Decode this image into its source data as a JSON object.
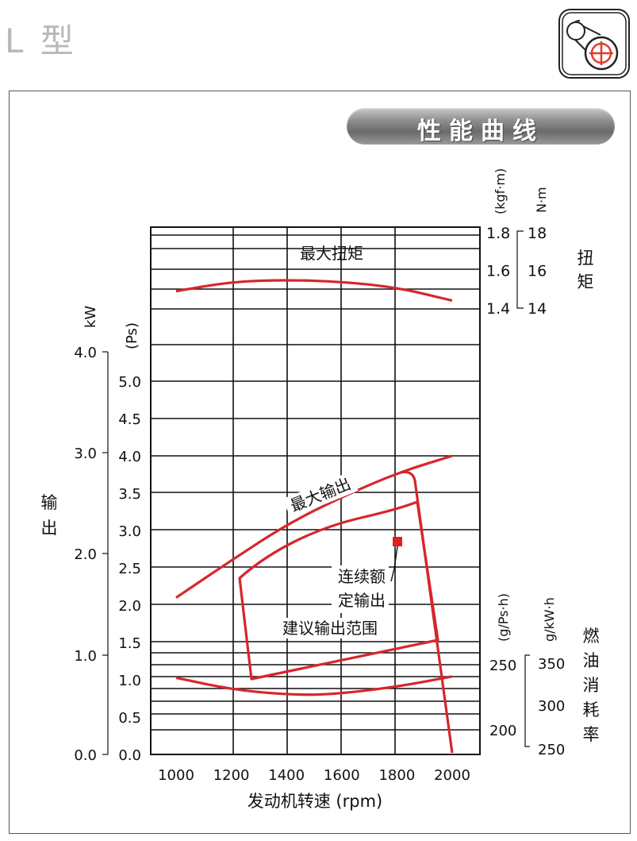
{
  "header": {
    "model": "L 型",
    "icon": "engine-pulley-icon"
  },
  "section_title": "性能曲线",
  "chart_data": {
    "type": "line",
    "xlabel": "发动机转速 (rpm)",
    "x_ticks": [
      "1000",
      "1200",
      "1400",
      "1600",
      "1800",
      "2000"
    ],
    "xlim": [
      1000,
      2000
    ],
    "grid": true,
    "torque_axis": {
      "label": "扭矩",
      "unit_kgf": "(kgf·m)",
      "unit_nm": "N·m",
      "ticks_kgf": [
        "1.8",
        "1.6",
        "1.4"
      ],
      "ticks_nm": [
        "18",
        "16",
        "14"
      ],
      "range_kgf": [
        1.4,
        1.8
      ]
    },
    "output_axis": {
      "label": "输出",
      "unit_kw": "kW",
      "unit_ps": "(Ps)",
      "ticks_kw": [
        "4.0",
        "3.0",
        "2.0",
        "1.0",
        "0.0"
      ],
      "ticks_ps": [
        "5.0",
        "4.5",
        "4.0",
        "3.5",
        "3.0",
        "2.5",
        "2.0",
        "1.5",
        "1.0",
        "0.5",
        "0.0"
      ],
      "range_ps": [
        0,
        5.0
      ]
    },
    "fuel_axis": {
      "label": "燃油消耗率",
      "unit_gps": "(g/Ps·h)",
      "unit_gkw": "g/kW·h",
      "ticks_gps": [
        "250",
        "200"
      ],
      "ticks_gkw": [
        "350",
        "300",
        "250"
      ]
    },
    "series": [
      {
        "name": "最大扭矩",
        "axis": "torque_kgf",
        "color": "#d7262b",
        "points": [
          [
            1000,
            1.49
          ],
          [
            1200,
            1.54
          ],
          [
            1400,
            1.55
          ],
          [
            1600,
            1.54
          ],
          [
            1800,
            1.51
          ],
          [
            2000,
            1.44
          ]
        ]
      },
      {
        "name": "最大输出",
        "axis": "output_ps",
        "color": "#d7262b",
        "points": [
          [
            1000,
            2.1
          ],
          [
            1200,
            2.6
          ],
          [
            1400,
            3.08
          ],
          [
            1600,
            3.45
          ],
          [
            1800,
            3.77
          ],
          [
            2000,
            4.0
          ]
        ]
      },
      {
        "name": "fuel-consumption",
        "axis": "fuel_gps",
        "color": "#d7262b",
        "points": [
          [
            1000,
            240
          ],
          [
            1200,
            231
          ],
          [
            1400,
            227
          ],
          [
            1560,
            227
          ],
          [
            1800,
            233
          ],
          [
            2000,
            241
          ]
        ]
      }
    ],
    "rated_output": {
      "label_line1": "连续额",
      "label_line2": "定输出",
      "rpm": 1800,
      "ps": 2.85,
      "color": "#e02020"
    },
    "recommended_range": {
      "label": "建议输出范围",
      "color": "#d7262b"
    }
  }
}
